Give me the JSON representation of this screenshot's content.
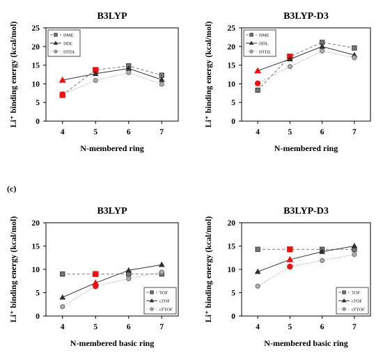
{
  "panel_label": "(c)",
  "chart_data": [
    {
      "type": "line",
      "title": "B3LYP",
      "xlabel": "N-membered ring",
      "ylabel": "Li⁺ binding energy (kcal/mol)",
      "x": [
        4,
        5,
        6,
        7
      ],
      "xticks": [
        "4",
        "5",
        "6",
        "7"
      ],
      "ylim": [
        0,
        25
      ],
      "yticks": [
        0,
        5,
        10,
        15,
        20,
        25
      ],
      "legend_position": "top-left",
      "series": [
        {
          "name": "DME",
          "values": [
            7,
            13.7,
            14.8,
            12.3
          ],
          "marker": "square",
          "dash": "dashed",
          "color": "#777777",
          "highlight": [
            true,
            true,
            false,
            false
          ]
        },
        {
          "name": "DDL",
          "values": [
            11,
            12.7,
            14.1,
            11.1
          ],
          "marker": "triangle",
          "dash": "solid",
          "color": "#333333",
          "highlight": [
            true,
            false,
            false,
            false
          ]
        },
        {
          "name": "DTDL",
          "values": [
            7.2,
            10.9,
            13.0,
            9.9
          ],
          "marker": "circle",
          "dash": "dotted",
          "color": "#aaaaaa",
          "highlight": [
            true,
            false,
            false,
            false
          ]
        }
      ]
    },
    {
      "type": "line",
      "title": "B3LYP-D3",
      "xlabel": "N-membered ring",
      "ylabel": "Li⁺ binding energy (kcal/mol)",
      "x": [
        4,
        5,
        6,
        7
      ],
      "xticks": [
        "4",
        "5",
        "6",
        "7"
      ],
      "ylim": [
        0,
        25
      ],
      "yticks": [
        0,
        5,
        10,
        15,
        20,
        25
      ],
      "legend_position": "top-left",
      "series": [
        {
          "name": "DME",
          "values": [
            8.3,
            17.3,
            21.1,
            19.6
          ],
          "marker": "square",
          "dash": "dashed",
          "color": "#777777",
          "highlight": [
            false,
            true,
            false,
            false
          ]
        },
        {
          "name": "DDL",
          "values": [
            13.5,
            16.6,
            20.0,
            17.7
          ],
          "marker": "triangle",
          "dash": "solid",
          "color": "#333333",
          "highlight": [
            true,
            false,
            false,
            false
          ]
        },
        {
          "name": "DTDL",
          "values": [
            10.1,
            14.6,
            18.8,
            17.0
          ],
          "marker": "circle",
          "dash": "dotted",
          "color": "#aaaaaa",
          "highlight": [
            true,
            false,
            false,
            false
          ]
        }
      ]
    },
    {
      "type": "line",
      "title": "B3LYP",
      "xlabel": "N-membered basic ring",
      "ylabel": "Li⁺ binding energy (kcal/mol)",
      "x": [
        4,
        5,
        6,
        7
      ],
      "xticks": [
        "4",
        "5",
        "6",
        "7"
      ],
      "ylim": [
        0,
        20
      ],
      "yticks": [
        0,
        5,
        10,
        15,
        20
      ],
      "legend_position": "bottom-right",
      "series": [
        {
          "name": "TOF",
          "values": [
            9.0,
            9.0,
            9.0,
            9.0
          ],
          "marker": "square",
          "dash": "dashed",
          "color": "#777777",
          "highlight": [
            false,
            true,
            false,
            false
          ]
        },
        {
          "name": "cTOF",
          "values": [
            4.0,
            7.1,
            9.8,
            11.0
          ],
          "marker": "triangle",
          "dash": "solid",
          "color": "#333333",
          "highlight": [
            false,
            true,
            false,
            false
          ]
        },
        {
          "name": "cFTOF",
          "values": [
            2.0,
            6.4,
            8.0,
            9.4
          ],
          "marker": "circle",
          "dash": "dotted",
          "color": "#aaaaaa",
          "highlight": [
            false,
            true,
            false,
            false
          ]
        }
      ]
    },
    {
      "type": "line",
      "title": "B3LYP-D3",
      "xlabel": "N-membered basic ring",
      "ylabel": "Li⁺ binding energy (kcal/mol)",
      "x": [
        4,
        5,
        6,
        7
      ],
      "xticks": [
        "4",
        "5",
        "6",
        "7"
      ],
      "ylim": [
        0,
        20
      ],
      "yticks": [
        0,
        5,
        10,
        15,
        20
      ],
      "legend_position": "bottom-right",
      "series": [
        {
          "name": "TOF",
          "values": [
            14.3,
            14.3,
            14.3,
            14.3
          ],
          "marker": "square",
          "dash": "dashed",
          "color": "#777777",
          "highlight": [
            false,
            true,
            false,
            false
          ]
        },
        {
          "name": "cTOF",
          "values": [
            9.5,
            12.1,
            13.8,
            15.0
          ],
          "marker": "triangle",
          "dash": "solid",
          "color": "#333333",
          "highlight": [
            false,
            true,
            false,
            false
          ]
        },
        {
          "name": "cFTOF",
          "values": [
            6.4,
            10.6,
            11.9,
            13.2
          ],
          "marker": "circle",
          "dash": "dotted",
          "color": "#aaaaaa",
          "highlight": [
            false,
            true,
            false,
            false
          ]
        }
      ]
    }
  ],
  "highlight_color": "#ee1111"
}
